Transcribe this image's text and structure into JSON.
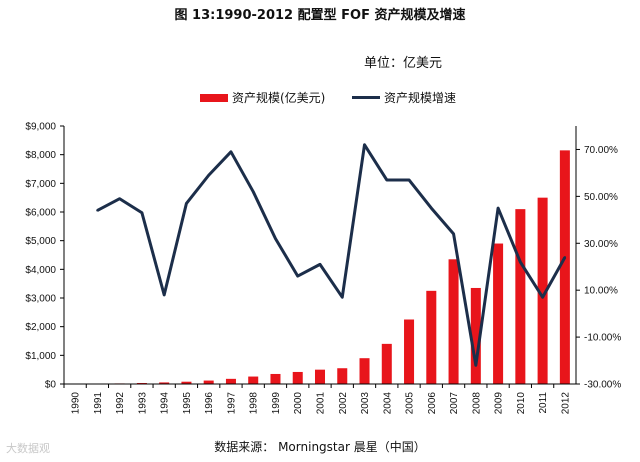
{
  "title": "图 13:1990-2012 配置型 FOF 资产规模及增速",
  "unit_label": "单位：亿美元",
  "legend": {
    "bar_label": "资产规模(亿美元)",
    "line_label": "资产规模增速"
  },
  "source_label": "数据来源：  Morningstar 晨星（中国）",
  "watermark": "大数据观",
  "colors": {
    "bar": "#e8151b",
    "line": "#1c2e4a",
    "axis": "#000000"
  },
  "chart_data": {
    "type": "bar+line",
    "title": "图 13:1990-2012 配置型 FOF 资产规模及增速",
    "categories": [
      "1990",
      "1991",
      "1992",
      "1993",
      "1994",
      "1995",
      "1996",
      "1997",
      "1998",
      "1999",
      "2000",
      "2001",
      "2002",
      "2003",
      "2004",
      "2005",
      "2006",
      "2007",
      "2008",
      "2009",
      "2010",
      "2011",
      "2012"
    ],
    "series": [
      {
        "name": "资产规模(亿美元)",
        "type": "bar",
        "axis": "left",
        "values": [
          5,
          10,
          20,
          35,
          55,
          80,
          120,
          180,
          260,
          350,
          420,
          500,
          550,
          900,
          1400,
          2250,
          3250,
          4350,
          3350,
          4900,
          6100,
          6500,
          8150
        ]
      },
      {
        "name": "资产规模增速",
        "type": "line",
        "axis": "right",
        "values": [
          null,
          44,
          49,
          43,
          8,
          47,
          59,
          69,
          52,
          32,
          16,
          21,
          7,
          72,
          57,
          57,
          45,
          34,
          -22,
          45,
          22,
          7,
          24
        ]
      }
    ],
    "left_axis": {
      "min": 0,
      "max": 9000,
      "ticks": [
        "$0",
        "$1,000",
        "$2,000",
        "$3,000",
        "$4,000",
        "$5,000",
        "$6,000",
        "$7,000",
        "$8,000",
        "$9,000"
      ]
    },
    "right_axis": {
      "min": -30,
      "max": 80,
      "ticks": [
        "-30.00%",
        "-10.00%",
        "10.00%",
        "30.00%",
        "50.00%",
        "70.00%"
      ]
    },
    "grid": false,
    "legend_position": "top"
  }
}
